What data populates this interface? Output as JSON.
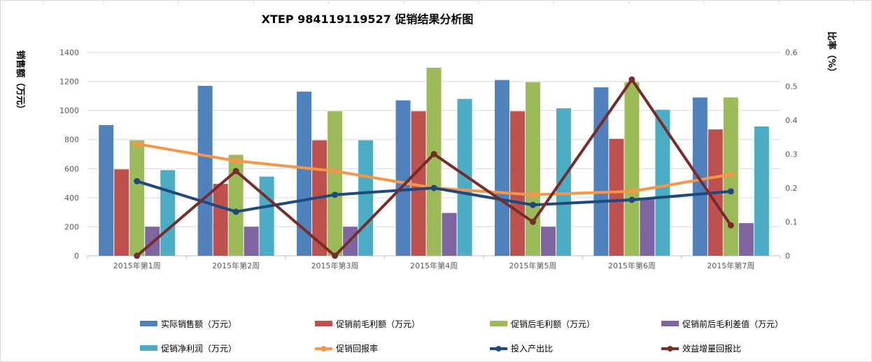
{
  "chart_data": {
    "type": "bar",
    "title": "XTEP 984119119527 促销结果分析图",
    "ylabel": "销售额（万元）",
    "y2label": "比率（%）",
    "ylim": [
      0,
      1400
    ],
    "y2lim": [
      0,
      0.6
    ],
    "yticks": [
      0,
      200,
      400,
      600,
      800,
      1000,
      1200,
      1400
    ],
    "y2ticks": [
      0,
      0.1,
      0.2,
      0.3,
      0.4,
      0.5,
      0.6
    ],
    "grid": true,
    "legend_position": "bottom",
    "categories": [
      "2015年第1周",
      "2015年第2周",
      "2015年第3周",
      "2015年第4周",
      "2015年第5周",
      "2015年第6周",
      "2015年第7周"
    ],
    "bar_series": [
      {
        "name": "实际销售额（万元）",
        "color": "#4f81bd",
        "values": [
          900,
          1170,
          1130,
          1070,
          1210,
          1160,
          1090
        ]
      },
      {
        "name": "促销前毛利额（万元）",
        "color": "#c0504d",
        "values": [
          595,
          495,
          795,
          995,
          995,
          805,
          870
        ]
      },
      {
        "name": "促销后毛利额（万元）",
        "color": "#9bbb59",
        "values": [
          795,
          695,
          995,
          1295,
          1195,
          1195,
          1090
        ]
      },
      {
        "name": "促销前后毛利差值（万元）",
        "color": "#8064a2",
        "values": [
          200,
          200,
          200,
          295,
          200,
          390,
          225
        ]
      },
      {
        "name": "促销净利润（万元）",
        "color": "#4bacc6",
        "values": [
          590,
          545,
          795,
          1080,
          1015,
          1005,
          890
        ]
      }
    ],
    "line_series": [
      {
        "name": "促销回报率",
        "color": "#f79646",
        "values": [
          0.33,
          0.28,
          0.25,
          0.2,
          0.18,
          0.19,
          0.24
        ]
      },
      {
        "name": "投入产出比",
        "color": "#1f497d",
        "values": [
          0.22,
          0.13,
          0.18,
          0.2,
          0.15,
          0.165,
          0.19
        ]
      },
      {
        "name": "效益增量回报比",
        "color": "#772c2a",
        "values": [
          0,
          0.25,
          0,
          0.3,
          0.1,
          0.52,
          0.09
        ]
      }
    ]
  }
}
